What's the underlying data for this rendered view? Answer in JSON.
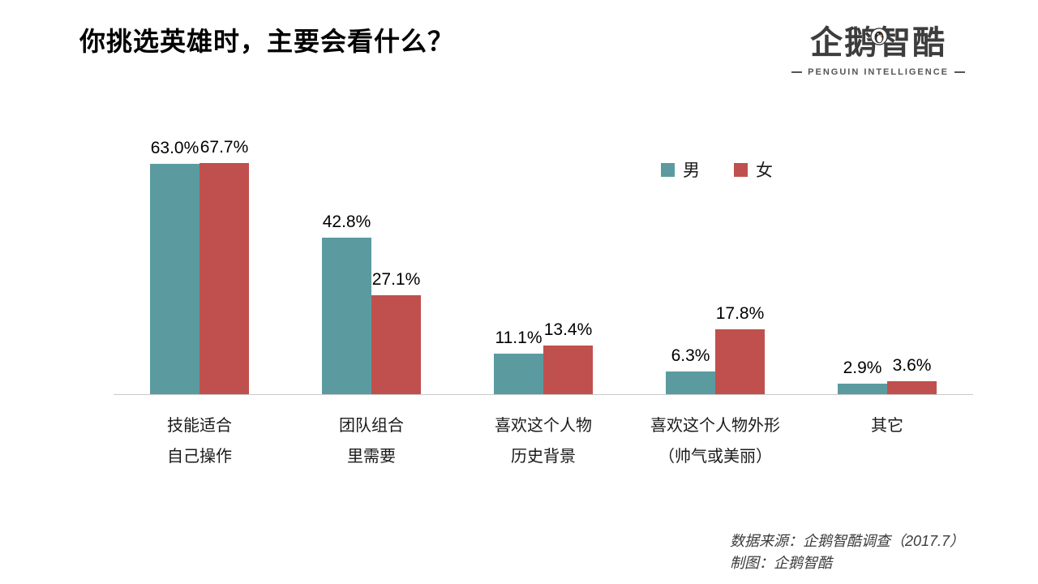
{
  "page": {
    "title": "你挑选英雄时，主要会看什么？"
  },
  "logo": {
    "brand": "企鹅智酷",
    "subtitle": "PENGUIN INTELLIGENCE"
  },
  "source": {
    "line1": "数据来源：企鹅智酷调查（2017.7）",
    "line2": "制图：企鹅智酷"
  },
  "chart_data": {
    "type": "bar",
    "title": "你挑选英雄时，主要会看什么？",
    "categories": [
      "技能适合\n自己操作",
      "团队组合\n里需要",
      "喜欢这个人物\n历史背景",
      "喜欢这个人物外形\n（帅气或美丽）",
      "其它"
    ],
    "series": [
      {
        "name": "男",
        "color": "#5B9BA0",
        "values": [
          63.0,
          42.8,
          11.1,
          6.3,
          2.9
        ]
      },
      {
        "name": "女",
        "color": "#C0504D",
        "values": [
          67.7,
          27.1,
          13.4,
          17.8,
          3.6
        ]
      }
    ],
    "value_suffix": "%",
    "value_decimals": 1,
    "ylim": [
      0,
      70
    ],
    "grid": false,
    "legend_position": "top-right",
    "axis_line_color": "#c9c9c9"
  }
}
